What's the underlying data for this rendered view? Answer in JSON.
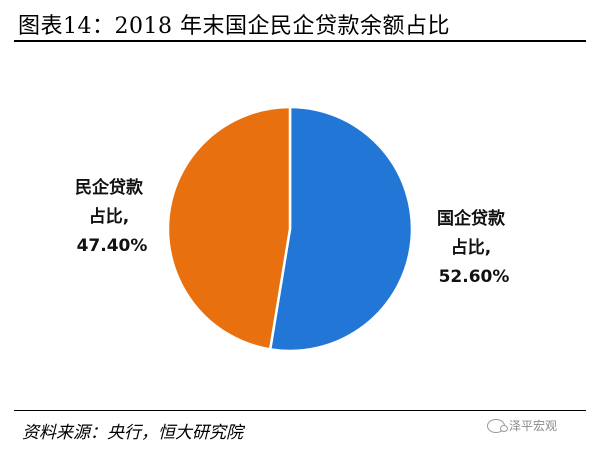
{
  "title": "图表14：2018 年末国企民企贷款余额占比",
  "source": "资料来源：央行，恒大研究院",
  "watermark": {
    "text": "泽平宏观",
    "icon": "wechat-icon"
  },
  "colors": {
    "soe": "#2277D6",
    "private": "#E8700F"
  },
  "chart_data": {
    "type": "pie",
    "title": "图表14：2018 年末国企民企贷款余额占比",
    "slices": [
      {
        "name": "国企贷款占比",
        "value": 52.6,
        "label_lines": [
          "国企贷款",
          "占比,",
          "52.60%"
        ],
        "color": "#2277D6"
      },
      {
        "name": "民企贷款占比",
        "value": 47.4,
        "label_lines": [
          "民企贷款",
          "占比,",
          "47.40%"
        ],
        "color": "#E8700F"
      }
    ]
  }
}
